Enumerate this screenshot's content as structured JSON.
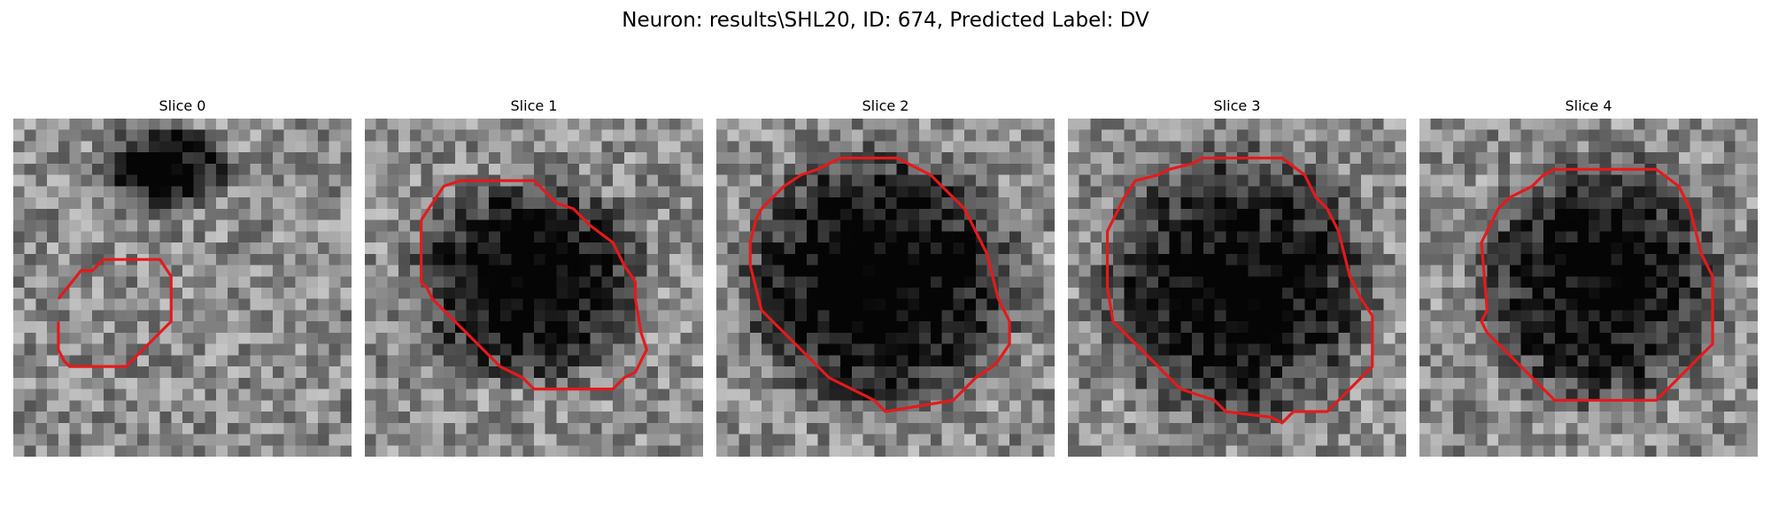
{
  "figure": {
    "title": "Neuron: results\\SHL20, ID: 674, Predicted Label: DV"
  },
  "panels": [
    {
      "title": "Slice 0"
    },
    {
      "title": "Slice 1"
    },
    {
      "title": "Slice 2"
    },
    {
      "title": "Slice 3"
    },
    {
      "title": "Slice 4"
    }
  ],
  "colors": {
    "contour": "#e41a1c",
    "background": "#ffffff"
  }
}
